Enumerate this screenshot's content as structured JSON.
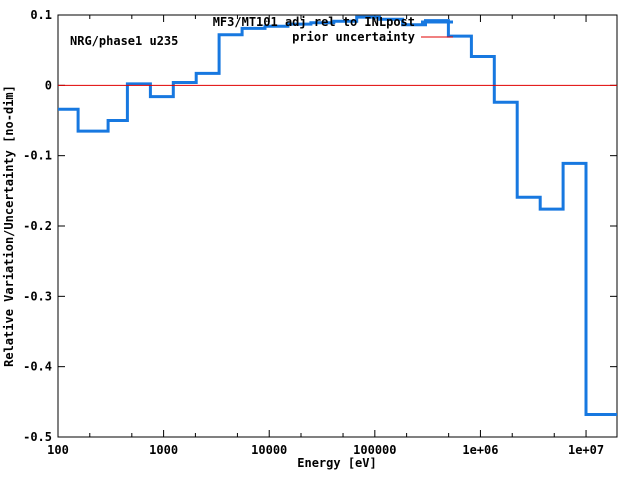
{
  "window": {
    "background": "#ffffff",
    "text_color": "#000000"
  },
  "annotations": {
    "dataset_label": "NRG/phase1 u235"
  },
  "legend": [
    {
      "label": "MF3/MT101 adj rel to INLpost",
      "color": "#1778e0",
      "sample": "line"
    },
    {
      "label": "prior uncertainty",
      "color": "#e00000",
      "sample": "line"
    }
  ],
  "chart_data": {
    "type": "line",
    "style": "step-histogram",
    "title": "",
    "xlabel": "Energy [eV]",
    "ylabel": "Relative Variation/Uncertainty [no-dim]",
    "xscale": "log",
    "grid": false,
    "legend_position": "top-center-inside",
    "xlim": [
      100,
      19640000
    ],
    "ylim": [
      -0.5,
      0.1
    ],
    "x_ticks": [
      {
        "value": 100,
        "label": "100"
      },
      {
        "value": 1000,
        "label": "1000"
      },
      {
        "value": 10000,
        "label": "10000"
      },
      {
        "value": 100000,
        "label": "100000"
      },
      {
        "value": 1000000,
        "label": "1e+06"
      },
      {
        "value": 10000000,
        "label": "1e+07"
      }
    ],
    "x_minor_mantissas": [
      2,
      5
    ],
    "y_ticks": [
      {
        "value": 0.1,
        "label": "0.1"
      },
      {
        "value": 0,
        "label": "0"
      },
      {
        "value": -0.1,
        "label": "-0.1"
      },
      {
        "value": -0.2,
        "label": "-0.2"
      },
      {
        "value": -0.3,
        "label": "-0.3"
      },
      {
        "value": -0.4,
        "label": "-0.4"
      },
      {
        "value": -0.5,
        "label": "-0.5"
      }
    ],
    "series": [
      {
        "name": "MF3/MT101 adj rel to INLpost",
        "color": "#1778e0",
        "line_width": 3,
        "bin_edges": [
          100,
          155,
          298,
          454,
          749,
          1234,
          2035,
          3355,
          5531,
          9119,
          15034,
          24788,
          40868,
          67380,
          111090,
          183156,
          301974,
          497871,
          820850,
          1353400,
          2231300,
          3678800,
          6065300,
          10000000,
          19640000
        ],
        "values": [
          -0.034,
          -0.065,
          -0.05,
          0.002,
          -0.016,
          0.004,
          0.017,
          0.072,
          0.081,
          0.084,
          0.087,
          0.089,
          0.091,
          0.097,
          0.094,
          0.086,
          0.092,
          0.07,
          0.041,
          -0.024,
          -0.159,
          -0.176,
          -0.111,
          -0.468
        ]
      },
      {
        "name": "prior uncertainty",
        "color": "#e00000",
        "line_width": 1,
        "constant_value": 0.0
      }
    ]
  }
}
